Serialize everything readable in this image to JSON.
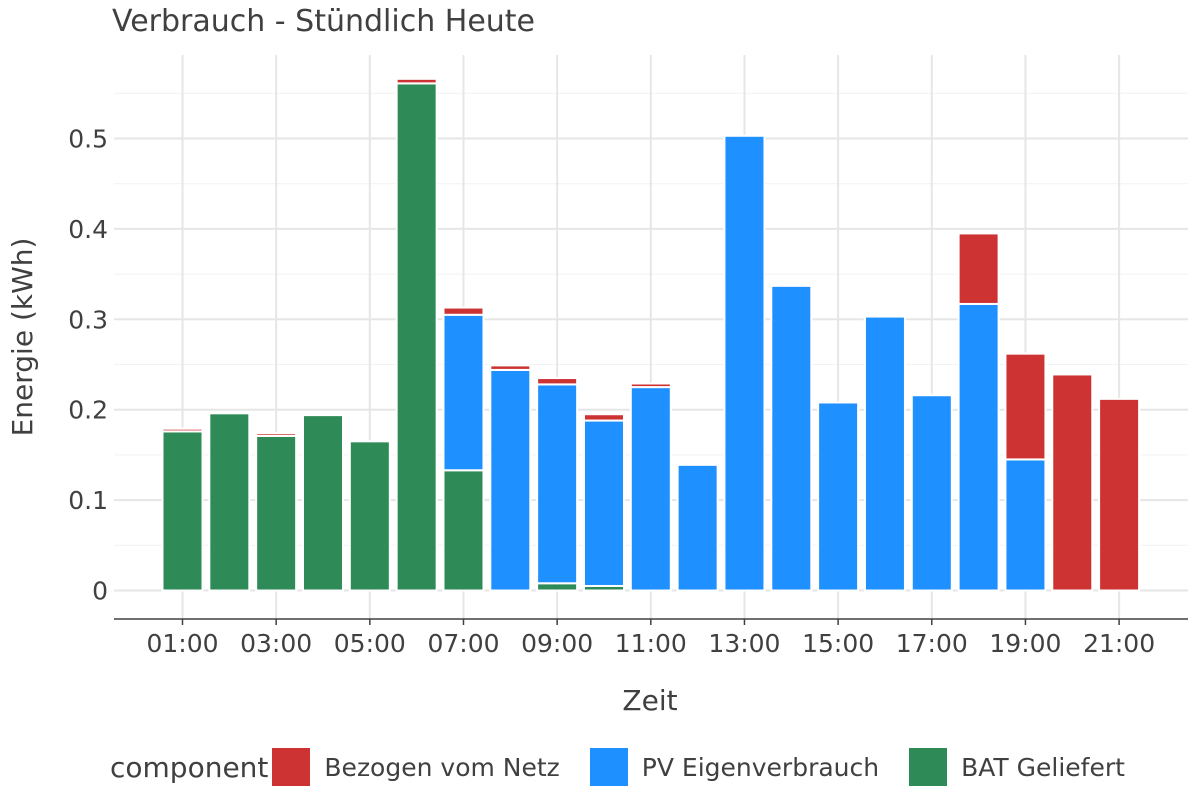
{
  "chart_data": {
    "type": "bar",
    "stacked": true,
    "title": "Verbrauch - Stündlich Heute",
    "xlabel": "Zeit",
    "ylabel": "Energie (kWh)",
    "ylim": [
      -0.03,
      0.58
    ],
    "yticks": [
      0,
      0.1,
      0.2,
      0.3,
      0.4,
      0.5
    ],
    "ytick_labels": [
      "0",
      "0.1",
      "0.2",
      "0.3",
      "0.4",
      "0.5"
    ],
    "xticks": [
      "01:00",
      "03:00",
      "05:00",
      "07:00",
      "09:00",
      "11:00",
      "13:00",
      "15:00",
      "17:00",
      "19:00",
      "21:00"
    ],
    "categories": [
      "01:00",
      "02:00",
      "03:00",
      "04:00",
      "05:00",
      "06:00",
      "07:00",
      "08:00",
      "09:00",
      "10:00",
      "11:00",
      "12:00",
      "13:00",
      "14:00",
      "15:00",
      "16:00",
      "17:00",
      "18:00",
      "19:00",
      "20:00",
      "21:00"
    ],
    "grid": true,
    "legend_position": "bottom",
    "legend_title": "component",
    "series": [
      {
        "name": "BAT Geliefert",
        "color": "#2E8B57",
        "values": [
          0.176,
          0.196,
          0.171,
          0.194,
          0.165,
          0.561,
          0.133,
          0,
          0.008,
          0.005,
          0,
          0,
          0,
          0,
          0,
          0,
          0,
          0,
          0,
          0,
          0
        ]
      },
      {
        "name": "PV Eigenverbrauch",
        "color": "#1E90FF",
        "values": [
          0,
          0,
          0,
          0,
          0,
          0,
          0.172,
          0.244,
          0.22,
          0.183,
          0.225,
          0.139,
          0.503,
          0.337,
          0.208,
          0.303,
          0.216,
          0.317,
          0.145,
          0,
          0
        ]
      },
      {
        "name": "Bezogen vom Netz",
        "color": "#CD3333",
        "values": [
          0.003,
          0,
          0.003,
          0,
          0,
          0.005,
          0.008,
          0.005,
          0.007,
          0.007,
          0.004,
          0,
          0,
          0,
          0,
          0,
          0,
          0.078,
          0.117,
          0.239,
          0.212
        ]
      }
    ],
    "legend_order": [
      "Bezogen vom Netz",
      "PV Eigenverbrauch",
      "BAT Geliefert"
    ]
  }
}
